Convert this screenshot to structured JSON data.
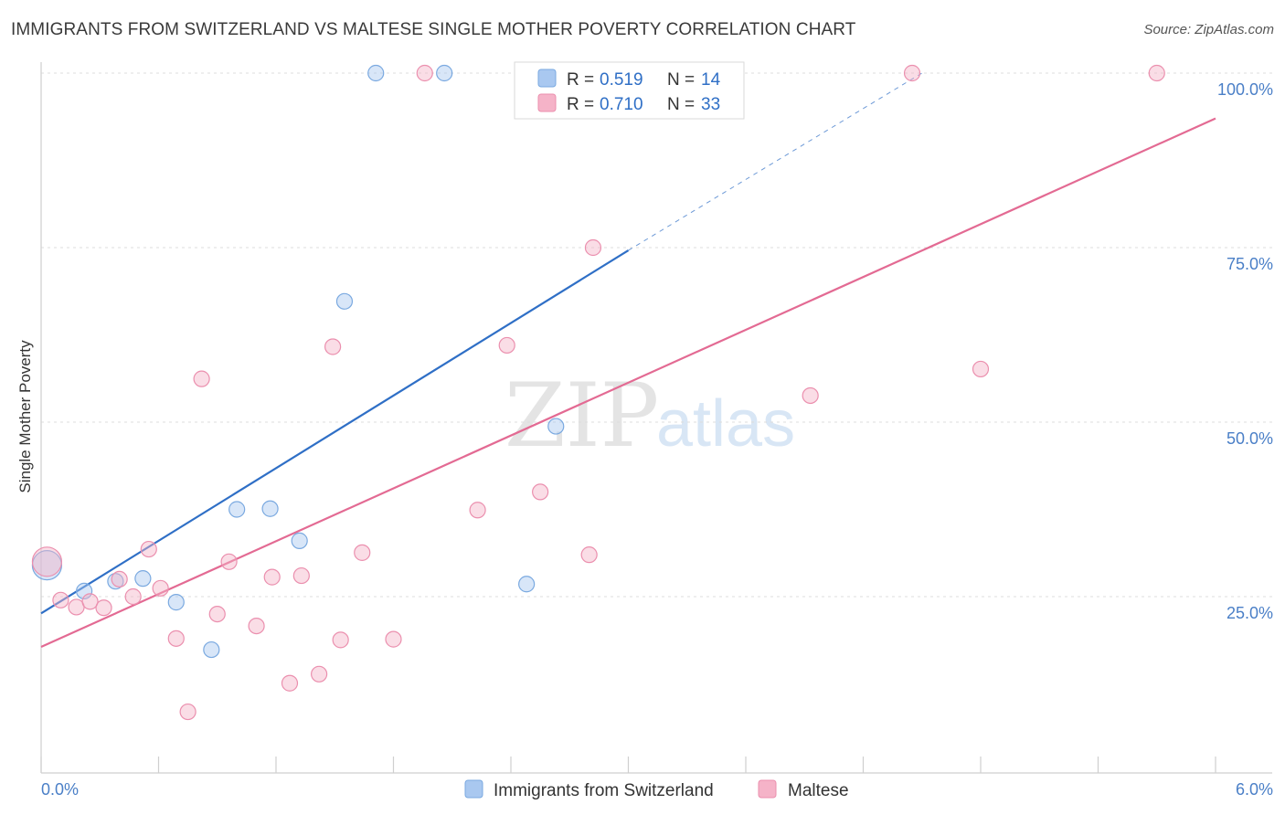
{
  "title": "IMMIGRANTS FROM SWITZERLAND VS MALTESE SINGLE MOTHER POVERTY CORRELATION CHART",
  "source": "Source: ZipAtlas.com",
  "watermark": {
    "part1": "ZIP",
    "part2": "atlas"
  },
  "legend_box": {
    "rows": [
      {
        "r_label": "R = ",
        "r_value": "0.519",
        "n_label": "N = ",
        "n_value": "14",
        "color": "#a9c8f0"
      },
      {
        "r_label": "R = ",
        "r_value": "0.710",
        "n_label": "N = ",
        "n_value": "33",
        "color": "#f5b3c8"
      }
    ]
  },
  "bottom_legend": [
    {
      "label": "Immigrants from Switzerland",
      "color": "#a9c8f0"
    },
    {
      "label": "Maltese",
      "color": "#f5b3c8"
    }
  ],
  "chart_data": {
    "type": "scatter",
    "xlabel": "",
    "ylabel": "Single Mother Poverty",
    "xlim": [
      0,
      6.0
    ],
    "ylim": [
      0,
      102
    ],
    "x_tick_labels": [
      {
        "value": 0,
        "label": "0.0%"
      },
      {
        "value": 6.0,
        "label": "6.0%"
      }
    ],
    "y_tick_labels": [
      {
        "value": 25,
        "label": "25.0%"
      },
      {
        "value": 50,
        "label": "50.0%"
      },
      {
        "value": 75,
        "label": "75.0%"
      },
      {
        "value": 100,
        "label": "100.0%"
      }
    ],
    "y_gridlines": [
      25,
      50,
      75,
      100
    ],
    "grid": true,
    "legend_position": "top-center",
    "series": [
      {
        "name": "Immigrants from Switzerland",
        "color": "#a9c8f0",
        "stroke": "#7aa9e0",
        "trend_color": "#2f6fc6",
        "points": [
          {
            "x": 0.03,
            "y": 29.5,
            "big": true
          },
          {
            "x": 0.22,
            "y": 25.8
          },
          {
            "x": 0.38,
            "y": 27.2
          },
          {
            "x": 0.52,
            "y": 27.6
          },
          {
            "x": 0.69,
            "y": 24.2
          },
          {
            "x": 0.87,
            "y": 17.4
          },
          {
            "x": 1.0,
            "y": 37.5
          },
          {
            "x": 1.17,
            "y": 37.6
          },
          {
            "x": 1.32,
            "y": 33.0
          },
          {
            "x": 1.55,
            "y": 67.3
          },
          {
            "x": 1.71,
            "y": 100.0
          },
          {
            "x": 2.06,
            "y": 100.0
          },
          {
            "x": 2.48,
            "y": 26.8
          },
          {
            "x": 2.63,
            "y": 49.4
          }
        ],
        "trend": {
          "x0": 0.0,
          "y0": 22.6,
          "x1": 3.0,
          "y1": 74.6,
          "dash_x1": 4.5,
          "dash_y1": 100.0
        }
      },
      {
        "name": "Maltese",
        "color": "#f5b3c8",
        "stroke": "#eb8fae",
        "trend_color": "#e36a93",
        "points": [
          {
            "x": 0.03,
            "y": 30.0,
            "big": true
          },
          {
            "x": 0.1,
            "y": 24.5
          },
          {
            "x": 0.18,
            "y": 23.5
          },
          {
            "x": 0.25,
            "y": 24.3
          },
          {
            "x": 0.32,
            "y": 23.4
          },
          {
            "x": 0.4,
            "y": 27.5
          },
          {
            "x": 0.47,
            "y": 25.0
          },
          {
            "x": 0.55,
            "y": 31.8
          },
          {
            "x": 0.61,
            "y": 26.2
          },
          {
            "x": 0.69,
            "y": 19.0
          },
          {
            "x": 0.75,
            "y": 8.5
          },
          {
            "x": 0.82,
            "y": 56.2
          },
          {
            "x": 0.9,
            "y": 22.5
          },
          {
            "x": 0.96,
            "y": 30.0
          },
          {
            "x": 1.1,
            "y": 20.8
          },
          {
            "x": 1.18,
            "y": 27.8
          },
          {
            "x": 1.27,
            "y": 12.6
          },
          {
            "x": 1.33,
            "y": 28.0
          },
          {
            "x": 1.42,
            "y": 13.9
          },
          {
            "x": 1.49,
            "y": 60.8
          },
          {
            "x": 1.53,
            "y": 18.8
          },
          {
            "x": 1.64,
            "y": 31.3
          },
          {
            "x": 1.8,
            "y": 18.9
          },
          {
            "x": 1.96,
            "y": 100.0
          },
          {
            "x": 2.23,
            "y": 37.4
          },
          {
            "x": 2.38,
            "y": 61.0
          },
          {
            "x": 2.55,
            "y": 40.0
          },
          {
            "x": 2.8,
            "y": 31.0
          },
          {
            "x": 2.82,
            "y": 75.0
          },
          {
            "x": 3.93,
            "y": 53.8
          },
          {
            "x": 4.45,
            "y": 100.0
          },
          {
            "x": 4.8,
            "y": 57.6
          },
          {
            "x": 5.7,
            "y": 100.0
          }
        ],
        "trend": {
          "x0": 0.0,
          "y0": 17.8,
          "x1": 6.0,
          "y1": 93.5
        }
      }
    ]
  }
}
